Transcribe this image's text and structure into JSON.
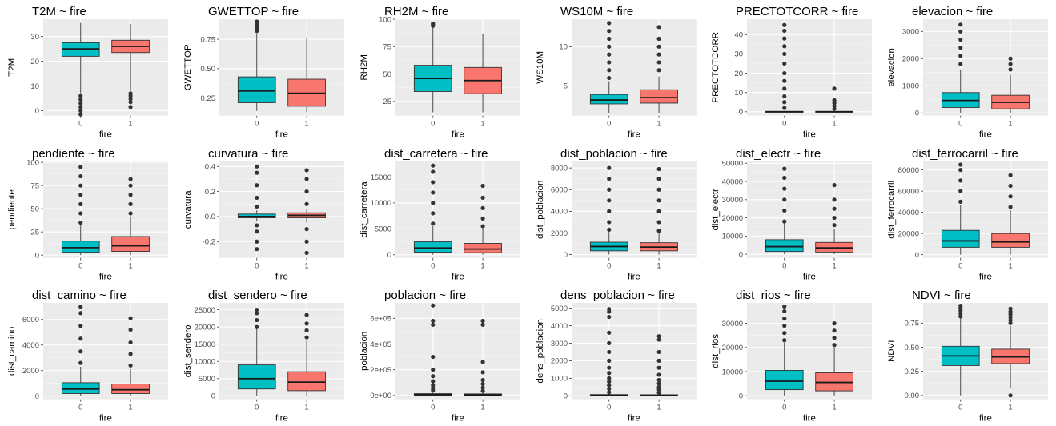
{
  "colors": {
    "group0": "#00BFC4",
    "group1": "#F8766D",
    "panel": "#EBEBEB",
    "grid_major": "#FFFFFF",
    "grid_minor": "#F5F5F5",
    "outlier": "#333333"
  },
  "chart_data": [
    {
      "type": "box",
      "title": "T2M ~ fire",
      "xlabel": "fire",
      "ylabel": "T2M",
      "categories": [
        "0",
        "1"
      ],
      "ylim": [
        -2,
        37
      ],
      "yticks": [
        0,
        10,
        20,
        30
      ],
      "ytick_labels": [
        "0",
        "10",
        "20",
        "30"
      ],
      "boxes": [
        {
          "min": 7,
          "q1": 22,
          "median": 25,
          "q3": 27.5,
          "max": 35.5,
          "outliers": [
            -1.5,
            0,
            1.5,
            3,
            4.5,
            6
          ]
        },
        {
          "min": 8,
          "q1": 23.5,
          "median": 26,
          "q3": 28.5,
          "max": 35,
          "outliers": [
            1.5,
            3.5,
            4.8,
            6,
            7
          ]
        }
      ]
    },
    {
      "type": "box",
      "title": "GWETTOP ~ fire",
      "xlabel": "fire",
      "ylabel": "GWETTOP",
      "categories": [
        "0",
        "1"
      ],
      "ylim": [
        0.1,
        0.92
      ],
      "yticks": [
        0.25,
        0.5,
        0.75
      ],
      "ytick_labels": [
        "0.25",
        "0.50",
        "0.75"
      ],
      "boxes": [
        {
          "min": 0.14,
          "q1": 0.21,
          "median": 0.31,
          "q3": 0.43,
          "max": 0.8,
          "outliers": [
            0.82,
            0.84,
            0.86,
            0.88,
            0.9
          ]
        },
        {
          "min": 0.13,
          "q1": 0.18,
          "median": 0.29,
          "q3": 0.41,
          "max": 0.76,
          "outliers": []
        }
      ]
    },
    {
      "type": "box",
      "title": "RH2M ~ fire",
      "xlabel": "fire",
      "ylabel": "RH2M",
      "categories": [
        "0",
        "1"
      ],
      "ylim": [
        12,
        100
      ],
      "yticks": [
        25,
        50,
        75,
        100
      ],
      "ytick_labels": [
        "25",
        "50",
        "75",
        "100"
      ],
      "boxes": [
        {
          "min": 15,
          "q1": 34,
          "median": 46,
          "q3": 58,
          "max": 93,
          "outliers": [
            94,
            95,
            96
          ]
        },
        {
          "min": 15,
          "q1": 32,
          "median": 44,
          "q3": 56,
          "max": 87,
          "outliers": []
        }
      ]
    },
    {
      "type": "box",
      "title": "WS10M ~ fire",
      "xlabel": "fire",
      "ylabel": "WS10M",
      "categories": [
        "0",
        "1"
      ],
      "ylim": [
        1.2,
        13.5
      ],
      "yticks": [
        5,
        10
      ],
      "ytick_labels": [
        "5",
        "10"
      ],
      "boxes": [
        {
          "min": 1.5,
          "q1": 2.7,
          "median": 3.2,
          "q3": 3.9,
          "max": 5.6,
          "outliers": [
            6,
            7,
            8,
            9,
            10,
            11,
            12,
            13
          ]
        },
        {
          "min": 1.5,
          "q1": 2.8,
          "median": 3.5,
          "q3": 4.5,
          "max": 6.2,
          "outliers": [
            7,
            8,
            9,
            10,
            11,
            12.5
          ]
        }
      ]
    },
    {
      "type": "box",
      "title": "PRECTOTCORR ~ fire",
      "xlabel": "fire",
      "ylabel": "PRECTOTCORR",
      "categories": [
        "0",
        "1"
      ],
      "ylim": [
        -2,
        48
      ],
      "yticks": [
        0,
        10,
        20,
        30,
        40
      ],
      "ytick_labels": [
        "0",
        "10",
        "20",
        "30",
        "40"
      ],
      "boxes": [
        {
          "min": 0,
          "q1": 0,
          "median": 0,
          "q3": 0.2,
          "max": 0.5,
          "outliers": [
            2,
            5,
            8,
            12,
            16,
            20,
            25,
            30,
            34,
            38,
            42,
            45
          ]
        },
        {
          "min": 0,
          "q1": 0,
          "median": 0,
          "q3": 0.2,
          "max": 0.5,
          "outliers": [
            1.5,
            3,
            4.5,
            6,
            12
          ]
        }
      ]
    },
    {
      "type": "box",
      "title": "elevacion ~ fire",
      "xlabel": "fire",
      "ylabel": "elevacion",
      "categories": [
        "0",
        "1"
      ],
      "ylim": [
        -100,
        3450
      ],
      "yticks": [
        0,
        1000,
        2000,
        3000
      ],
      "ytick_labels": [
        "0",
        "1000",
        "2000",
        "3000"
      ],
      "boxes": [
        {
          "min": 0,
          "q1": 200,
          "median": 460,
          "q3": 750,
          "max": 1600,
          "outliers": [
            1800,
            2100,
            2400,
            2700,
            3000,
            3250
          ]
        },
        {
          "min": 0,
          "q1": 150,
          "median": 390,
          "q3": 650,
          "max": 1400,
          "outliers": [
            1600,
            1800,
            2000
          ]
        }
      ]
    },
    {
      "type": "box",
      "title": "pendiente ~ fire",
      "xlabel": "fire",
      "ylabel": "pendiente",
      "categories": [
        "0",
        "1"
      ],
      "ylim": [
        -3,
        101
      ],
      "yticks": [
        0,
        25,
        50,
        75,
        100
      ],
      "ytick_labels": [
        "0",
        "25",
        "50",
        "75",
        "100"
      ],
      "boxes": [
        {
          "min": 0,
          "q1": 3,
          "median": 8,
          "q3": 15,
          "max": 32,
          "outliers": [
            35,
            45,
            55,
            65,
            75,
            85,
            95
          ]
        },
        {
          "min": 0,
          "q1": 4,
          "median": 10,
          "q3": 20,
          "max": 42,
          "outliers": [
            45,
            55,
            65,
            75,
            82
          ]
        }
      ]
    },
    {
      "type": "box",
      "title": "curvatura ~ fire",
      "xlabel": "fire",
      "ylabel": "curvatura",
      "categories": [
        "0",
        "1"
      ],
      "ylim": [
        -0.33,
        0.44
      ],
      "yticks": [
        -0.2,
        0,
        0.2,
        0.4
      ],
      "ytick_labels": [
        "-0.2",
        "0.0",
        "0.2",
        "0.4"
      ],
      "boxes": [
        {
          "min": -0.04,
          "q1": -0.01,
          "median": 0.0,
          "q3": 0.02,
          "max": 0.05,
          "outliers": [
            -0.26,
            -0.2,
            -0.12,
            -0.07,
            0.08,
            0.15,
            0.25,
            0.35,
            0.4
          ]
        },
        {
          "min": -0.05,
          "q1": -0.01,
          "median": 0.01,
          "q3": 0.03,
          "max": 0.06,
          "outliers": [
            -0.29,
            -0.2,
            -0.1,
            0.1,
            0.2,
            0.3,
            0.37
          ]
        }
      ]
    },
    {
      "type": "box",
      "title": "dist_carretera ~ fire",
      "xlabel": "fire",
      "ylabel": "dist_carretera",
      "categories": [
        "0",
        "1"
      ],
      "ylim": [
        -600,
        18000
      ],
      "yticks": [
        0,
        5000,
        10000,
        15000
      ],
      "ytick_labels": [
        "0",
        "5000",
        "10000",
        "15000"
      ],
      "boxes": [
        {
          "min": 0,
          "q1": 500,
          "median": 1300,
          "q3": 2500,
          "max": 5500,
          "outliers": [
            6000,
            8000,
            10000,
            12000,
            14000,
            16000,
            17200
          ]
        },
        {
          "min": 0,
          "q1": 400,
          "median": 1100,
          "q3": 2200,
          "max": 5000,
          "outliers": [
            5500,
            7000,
            9000,
            11000,
            13300
          ]
        }
      ]
    },
    {
      "type": "box",
      "title": "dist_poblacion ~ fire",
      "xlabel": "fire",
      "ylabel": "dist_poblacion",
      "categories": [
        "0",
        "1"
      ],
      "ylim": [
        -300,
        8600
      ],
      "yticks": [
        0,
        2000,
        4000,
        6000,
        8000
      ],
      "ytick_labels": [
        "0",
        "2000",
        "4000",
        "6000",
        "8000"
      ],
      "boxes": [
        {
          "min": 0,
          "q1": 350,
          "median": 750,
          "q3": 1150,
          "max": 2100,
          "outliers": [
            2300,
            3000,
            4000,
            5000,
            6000,
            7000,
            8000
          ]
        },
        {
          "min": 0,
          "q1": 350,
          "median": 700,
          "q3": 1100,
          "max": 2000,
          "outliers": [
            2200,
            3000,
            4000,
            5000,
            6000,
            7000,
            7900
          ]
        }
      ]
    },
    {
      "type": "box",
      "title": "dist_electr ~ fire",
      "xlabel": "fire",
      "ylabel": "dist_electr",
      "categories": [
        "0",
        "1"
      ],
      "ylim": [
        -2000,
        51000
      ],
      "yticks": [
        0,
        10000,
        20000,
        30000,
        40000,
        50000
      ],
      "ytick_labels": [
        "0",
        "10000",
        "20000",
        "30000",
        "40000",
        "50000"
      ],
      "boxes": [
        {
          "min": 0,
          "q1": 1500,
          "median": 4200,
          "q3": 8000,
          "max": 17000,
          "outliers": [
            18000,
            24000,
            30000,
            36000,
            42000,
            47000
          ]
        },
        {
          "min": 0,
          "q1": 1200,
          "median": 3500,
          "q3": 6500,
          "max": 14000,
          "outliers": [
            16000,
            20000,
            25000,
            30000,
            38000
          ]
        }
      ]
    },
    {
      "type": "box",
      "title": "dist_ferrocarril ~ fire",
      "xlabel": "fire",
      "ylabel": "dist_ferrocarril",
      "categories": [
        "0",
        "1"
      ],
      "ylim": [
        -3000,
        88000
      ],
      "yticks": [
        0,
        20000,
        40000,
        60000,
        80000
      ],
      "ytick_labels": [
        "0",
        "20000",
        "40000",
        "60000",
        "80000"
      ],
      "boxes": [
        {
          "min": 0,
          "q1": 7000,
          "median": 13000,
          "q3": 23000,
          "max": 47000,
          "outliers": [
            50000,
            60000,
            70000,
            80000,
            85000
          ]
        },
        {
          "min": 0,
          "q1": 7000,
          "median": 12000,
          "q3": 20000,
          "max": 42000,
          "outliers": [
            45000,
            55000,
            65000,
            75000
          ]
        }
      ]
    },
    {
      "type": "box",
      "title": "dist_camino ~ fire",
      "xlabel": "fire",
      "ylabel": "dist_camino",
      "categories": [
        "0",
        "1"
      ],
      "ylim": [
        -250,
        7300
      ],
      "yticks": [
        0,
        2000,
        4000,
        6000
      ],
      "ytick_labels": [
        "0",
        "2000",
        "4000",
        "6000"
      ],
      "boxes": [
        {
          "min": 0,
          "q1": 200,
          "median": 550,
          "q3": 1050,
          "max": 2300,
          "outliers": [
            2600,
            3500,
            4500,
            5500,
            6500,
            7000
          ]
        },
        {
          "min": 0,
          "q1": 200,
          "median": 500,
          "q3": 950,
          "max": 2100,
          "outliers": [
            2400,
            3300,
            4200,
            5200,
            6100
          ]
        }
      ]
    },
    {
      "type": "box",
      "title": "dist_sendero ~ fire",
      "xlabel": "fire",
      "ylabel": "dist_sendero",
      "categories": [
        "0",
        "1"
      ],
      "ylim": [
        -1000,
        27000
      ],
      "yticks": [
        0,
        5000,
        10000,
        15000,
        20000,
        25000
      ],
      "ytick_labels": [
        "0",
        "5000",
        "10000",
        "15000",
        "20000",
        "25000"
      ],
      "boxes": [
        {
          "min": 0,
          "q1": 2000,
          "median": 5000,
          "q3": 9000,
          "max": 19500,
          "outliers": [
            20000,
            22000,
            24000,
            25000
          ]
        },
        {
          "min": 0,
          "q1": 1500,
          "median": 4000,
          "q3": 7000,
          "max": 16000,
          "outliers": [
            17000,
            19000,
            21000,
            23500
          ]
        }
      ]
    },
    {
      "type": "box",
      "title": "poblacion ~ fire",
      "xlabel": "fire",
      "ylabel": "poblacion",
      "categories": [
        "0",
        "1"
      ],
      "ylim": [
        -30000,
        720000
      ],
      "yticks": [
        0,
        200000,
        400000,
        600000
      ],
      "ytick_labels": [
        "0e+00",
        "2e+05",
        "4e+05",
        "6e+05"
      ],
      "boxes": [
        {
          "min": 0,
          "q1": 2000,
          "median": 6000,
          "q3": 14000,
          "max": 30000,
          "outliers": [
            40000,
            60000,
            80000,
            110000,
            150000,
            200000,
            300000,
            550000,
            580000,
            700000
          ]
        },
        {
          "min": 0,
          "q1": 1500,
          "median": 5000,
          "q3": 12000,
          "max": 25000,
          "outliers": [
            35000,
            60000,
            90000,
            120000,
            180000,
            260000,
            550000,
            580000
          ]
        }
      ]
    },
    {
      "type": "box",
      "title": "dens_poblacion ~ fire",
      "xlabel": "fire",
      "ylabel": "dens_poblacion",
      "categories": [
        "0",
        "1"
      ],
      "ylim": [
        -200,
        5300
      ],
      "yticks": [
        0,
        1000,
        2000,
        3000,
        4000,
        5000
      ],
      "ytick_labels": [
        "0",
        "1000",
        "2000",
        "3000",
        "4000",
        "5000"
      ],
      "boxes": [
        {
          "min": 0,
          "q1": 10,
          "median": 30,
          "q3": 70,
          "max": 150,
          "outliers": [
            200,
            400,
            600,
            800,
            1000,
            1300,
            1600,
            2000,
            2500,
            3000,
            3600,
            4500,
            4800,
            4950
          ]
        },
        {
          "min": 0,
          "q1": 10,
          "median": 30,
          "q3": 60,
          "max": 130,
          "outliers": [
            180,
            350,
            500,
            700,
            900,
            1200,
            1600,
            2000,
            2500,
            3200,
            3400
          ]
        }
      ]
    },
    {
      "type": "box",
      "title": "dist_rios ~ fire",
      "xlabel": "fire",
      "ylabel": "dist_rios",
      "categories": [
        "0",
        "1"
      ],
      "ylim": [
        -1500,
        38500
      ],
      "yticks": [
        0,
        10000,
        20000,
        30000
      ],
      "ytick_labels": [
        "0",
        "10000",
        "20000",
        "30000"
      ],
      "boxes": [
        {
          "min": 0,
          "q1": 2500,
          "median": 6000,
          "q3": 10500,
          "max": 22000,
          "outliers": [
            23000,
            26000,
            29000,
            32000,
            35000,
            37000
          ]
        },
        {
          "min": 0,
          "q1": 2000,
          "median": 5500,
          "q3": 9500,
          "max": 20000,
          "outliers": [
            21000,
            24000,
            27000,
            30000
          ]
        }
      ]
    },
    {
      "type": "box",
      "title": "NDVI ~ fire",
      "xlabel": "fire",
      "ylabel": "NDVI",
      "categories": [
        "0",
        "1"
      ],
      "ylim": [
        -0.04,
        0.96
      ],
      "yticks": [
        0,
        0.25,
        0.5,
        0.75
      ],
      "ytick_labels": [
        "0.00",
        "0.25",
        "0.50",
        "0.75"
      ],
      "boxes": [
        {
          "min": 0.0,
          "q1": 0.31,
          "median": 0.41,
          "q3": 0.51,
          "max": 0.8,
          "outliers": [
            0.82,
            0.85,
            0.88,
            0.91,
            0.93
          ]
        },
        {
          "min": 0.07,
          "q1": 0.33,
          "median": 0.4,
          "q3": 0.48,
          "max": 0.72,
          "outliers": [
            0.0,
            0.75,
            0.78,
            0.81,
            0.84,
            0.87,
            0.9
          ]
        }
      ]
    }
  ]
}
